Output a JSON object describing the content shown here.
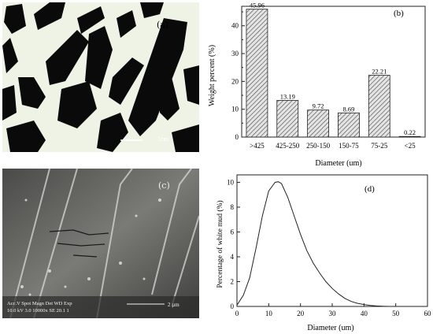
{
  "panel_a": {
    "label": "(a)",
    "scale_text": "1cm"
  },
  "panel_c": {
    "label": "(c)",
    "sem_info_line1": "Acc.V  Spot Magn    Det  WD  Exp",
    "sem_info_line2": "10.0 kV 3.0   10000x   SE   20.1  1",
    "scale_text": "2 µm"
  },
  "chart_data": [
    {
      "type": "bar",
      "panel_label": "(b)",
      "categories": [
        ">425",
        "425-250",
        "250-150",
        "150-75",
        "75-25",
        "<25"
      ],
      "values": [
        45.96,
        13.19,
        9.72,
        8.69,
        22.21,
        0.22
      ],
      "data_labels": [
        "45.96",
        "13.19",
        "9.72",
        "8.69",
        "22.21",
        "0.22"
      ],
      "xlabel": "Diameter (um)",
      "ylabel": "Weight percent (%)",
      "ylim": [
        0,
        47
      ],
      "yticks": [
        0,
        10,
        20,
        30,
        40
      ],
      "bar_pattern": "diagonal hatch"
    },
    {
      "type": "line",
      "panel_label": "(d)",
      "x": [
        0,
        2,
        4,
        6,
        8,
        10,
        12,
        13,
        14,
        16,
        18,
        20,
        22,
        24,
        26,
        28,
        30,
        32,
        34,
        36,
        38,
        40,
        42,
        44,
        46,
        48
      ],
      "y": [
        0.1,
        0.9,
        2.3,
        4.7,
        7.3,
        9.3,
        10.0,
        10.05,
        9.9,
        8.8,
        7.3,
        5.8,
        4.5,
        3.5,
        2.7,
        2.0,
        1.45,
        1.0,
        0.65,
        0.4,
        0.25,
        0.15,
        0.08,
        0.04,
        0.01,
        0.0
      ],
      "xlabel": "Diameter (um)",
      "ylabel": "Percentage of white mud (%)",
      "xlim": [
        0,
        60
      ],
      "ylim": [
        0,
        10.6
      ],
      "xticks": [
        0,
        10,
        20,
        30,
        40,
        50,
        60
      ],
      "yticks": [
        0,
        2,
        4,
        6,
        8,
        10
      ]
    }
  ]
}
